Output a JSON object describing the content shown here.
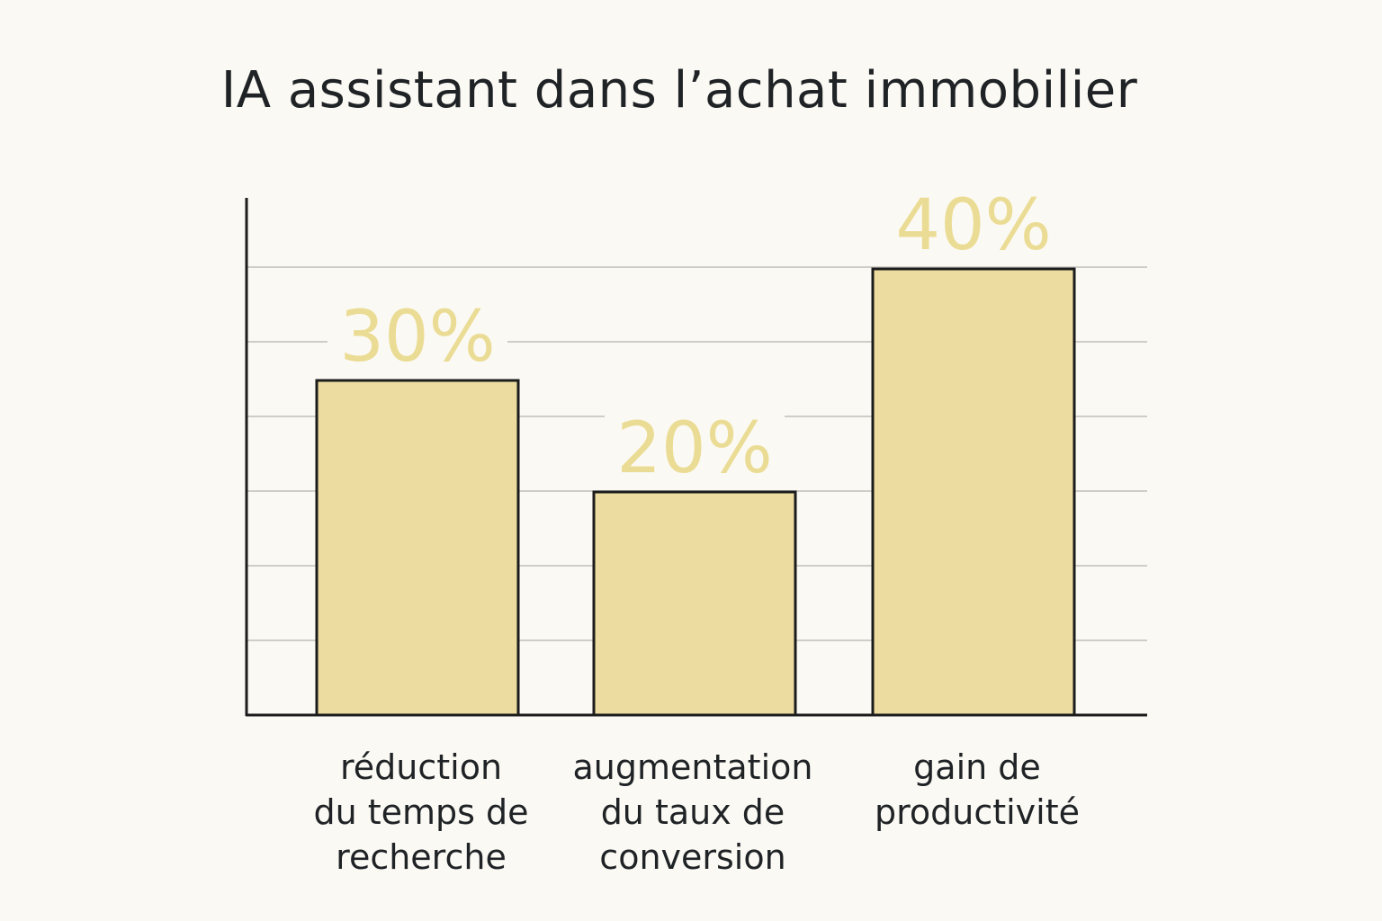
{
  "chart_data": {
    "type": "bar",
    "title": "IA assistant dans l’achat immobilier",
    "categories": [
      [
        "réduction",
        "du temps de",
        "recherche"
      ],
      [
        "augmentation",
        "du taux de",
        "conversion"
      ],
      [
        "gain de",
        "productivité"
      ]
    ],
    "values": [
      30,
      20,
      40
    ],
    "value_labels": [
      "30%",
      "20%",
      "40%"
    ],
    "ylim": [
      0,
      50
    ],
    "xlabel": "",
    "ylabel": "",
    "grid": true,
    "colors": {
      "bar_fill": "#ecdc9f",
      "bar_stroke": "#1c1c1c",
      "value_label": "#ebdc95",
      "background": "#fbf9f3"
    }
  }
}
